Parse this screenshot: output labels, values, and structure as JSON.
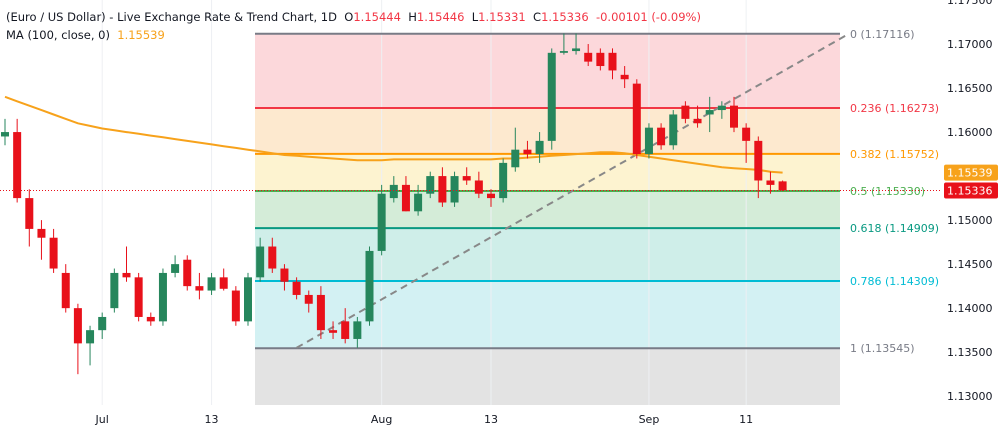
{
  "legend": {
    "title": "(Euro / US Dollar) - Live Exchange Rate & Trend Chart, 1D",
    "open_label": "O",
    "open": "1.15444",
    "high_label": "H",
    "high": "1.15446",
    "low_label": "L",
    "low": "1.15331",
    "close_label": "C",
    "close": "1.15336",
    "change": "-0.00101 (-0.09%)",
    "ma_label": "MA (100, close, 0)",
    "ma_value": "1.15539"
  },
  "colors": {
    "up": "#26865c",
    "down": "#e8111a",
    "ma": "#f7a21b",
    "trend": "#888888",
    "price_tag": "#e8111a",
    "ma_tag": "#f7a21b"
  },
  "chart_data": {
    "type": "candlestick",
    "y_range": [
      1.129,
      1.175
    ],
    "y_ticks": [
      "1.17500",
      "1.17000",
      "1.16500",
      "1.16000",
      "1.15500",
      "1.15000",
      "1.14500",
      "1.14000",
      "1.13500",
      "1.13000"
    ],
    "x_ticks": [
      {
        "label": "Jul",
        "index": 8
      },
      {
        "label": "13",
        "index": 17
      },
      {
        "label": "Aug",
        "index": 31
      },
      {
        "label": "13",
        "index": 40
      },
      {
        "label": "Sep",
        "index": 53
      },
      {
        "label": "11",
        "index": 61
      }
    ],
    "last_price": "1.15336",
    "ma_price": "1.15539",
    "candles": [
      [
        1.1595,
        1.1615,
        1.1585,
        1.16
      ],
      [
        1.16,
        1.1615,
        1.152,
        1.1525
      ],
      [
        1.1525,
        1.1535,
        1.147,
        1.149
      ],
      [
        1.149,
        1.15,
        1.1455,
        1.148
      ],
      [
        1.148,
        1.149,
        1.144,
        1.1445
      ],
      [
        1.144,
        1.145,
        1.1395,
        1.14
      ],
      [
        1.14,
        1.1405,
        1.1325,
        1.136
      ],
      [
        1.136,
        1.138,
        1.1335,
        1.1375
      ],
      [
        1.1375,
        1.1395,
        1.1365,
        1.139
      ],
      [
        1.14,
        1.1445,
        1.1395,
        1.144
      ],
      [
        1.144,
        1.147,
        1.143,
        1.1435
      ],
      [
        1.1435,
        1.144,
        1.1385,
        1.139
      ],
      [
        1.139,
        1.1395,
        1.138,
        1.1385
      ],
      [
        1.1385,
        1.1445,
        1.138,
        1.144
      ],
      [
        1.144,
        1.146,
        1.1435,
        1.145
      ],
      [
        1.1455,
        1.146,
        1.142,
        1.1425
      ],
      [
        1.1425,
        1.144,
        1.141,
        1.142
      ],
      [
        1.142,
        1.144,
        1.1415,
        1.1435
      ],
      [
        1.1435,
        1.1445,
        1.142,
        1.1422
      ],
      [
        1.142,
        1.1425,
        1.138,
        1.1385
      ],
      [
        1.1385,
        1.144,
        1.138,
        1.1435
      ],
      [
        1.1435,
        1.148,
        1.143,
        1.147
      ],
      [
        1.147,
        1.148,
        1.144,
        1.1445
      ],
      [
        1.1445,
        1.145,
        1.142,
        1.143
      ],
      [
        1.143,
        1.1435,
        1.141,
        1.1415
      ],
      [
        1.1415,
        1.142,
        1.1395,
        1.1405
      ],
      [
        1.1415,
        1.1425,
        1.1365,
        1.1375
      ],
      [
        1.1375,
        1.1385,
        1.1365,
        1.1372
      ],
      [
        1.1385,
        1.14,
        1.136,
        1.1365
      ],
      [
        1.1365,
        1.139,
        1.1355,
        1.1385
      ],
      [
        1.1385,
        1.147,
        1.138,
        1.1465
      ],
      [
        1.1465,
        1.154,
        1.146,
        1.153
      ],
      [
        1.1525,
        1.155,
        1.152,
        1.154
      ],
      [
        1.154,
        1.155,
        1.151,
        1.151
      ],
      [
        1.151,
        1.154,
        1.1505,
        1.153
      ],
      [
        1.153,
        1.1555,
        1.1525,
        1.155
      ],
      [
        1.155,
        1.156,
        1.1515,
        1.152
      ],
      [
        1.152,
        1.1555,
        1.1515,
        1.155
      ],
      [
        1.155,
        1.156,
        1.154,
        1.1545
      ],
      [
        1.1545,
        1.1555,
        1.1525,
        1.153
      ],
      [
        1.153,
        1.1535,
        1.1515,
        1.1525
      ],
      [
        1.1525,
        1.157,
        1.152,
        1.1565
      ],
      [
        1.156,
        1.1605,
        1.1555,
        1.158
      ],
      [
        1.158,
        1.159,
        1.157,
        1.1575
      ],
      [
        1.1575,
        1.16,
        1.1565,
        1.159
      ],
      [
        1.159,
        1.1695,
        1.158,
        1.169
      ],
      [
        1.169,
        1.1712,
        1.1688,
        1.1692
      ],
      [
        1.1692,
        1.1712,
        1.1688,
        1.1695
      ],
      [
        1.169,
        1.17,
        1.1675,
        1.168
      ],
      [
        1.169,
        1.1695,
        1.167,
        1.1675
      ],
      [
        1.169,
        1.1695,
        1.166,
        1.167
      ],
      [
        1.1665,
        1.1675,
        1.165,
        1.166
      ],
      [
        1.1655,
        1.166,
        1.157,
        1.1575
      ],
      [
        1.1575,
        1.161,
        1.157,
        1.1605
      ],
      [
        1.1605,
        1.161,
        1.158,
        1.1585
      ],
      [
        1.1585,
        1.1625,
        1.158,
        1.162
      ],
      [
        1.163,
        1.1635,
        1.161,
        1.1615
      ],
      [
        1.1615,
        1.163,
        1.1605,
        1.161
      ],
      [
        1.162,
        1.164,
        1.16,
        1.1625
      ],
      [
        1.1625,
        1.1635,
        1.1615,
        1.163
      ],
      [
        1.163,
        1.164,
        1.16,
        1.1605
      ],
      [
        1.1605,
        1.161,
        1.1565,
        1.159
      ],
      [
        1.159,
        1.1595,
        1.1525,
        1.1545
      ],
      [
        1.1545,
        1.1555,
        1.153,
        1.154
      ],
      [
        1.1544,
        1.1545,
        1.1533,
        1.1534
      ]
    ],
    "ma_series": [
      1.164,
      1.1635,
      1.163,
      1.1625,
      1.162,
      1.1615,
      1.161,
      1.1607,
      1.1604,
      1.1602,
      1.16,
      1.1598,
      1.1596,
      1.1594,
      1.1592,
      1.159,
      1.1588,
      1.1586,
      1.1584,
      1.1582,
      1.158,
      1.1578,
      1.1576,
      1.1574,
      1.1573,
      1.1572,
      1.1571,
      1.157,
      1.1569,
      1.1568,
      1.1568,
      1.1568,
      1.1569,
      1.1569,
      1.1569,
      1.1569,
      1.1569,
      1.1569,
      1.1569,
      1.1569,
      1.1569,
      1.157,
      1.157,
      1.1571,
      1.1572,
      1.1573,
      1.1574,
      1.1575,
      1.1576,
      1.1577,
      1.1577,
      1.1576,
      1.1574,
      1.1572,
      1.157,
      1.1568,
      1.1566,
      1.1564,
      1.1562,
      1.156,
      1.1559,
      1.1558,
      1.1557,
      1.1555,
      1.1554
    ],
    "fib_levels": [
      {
        "label": "0 (1.17116)",
        "price": 1.17116,
        "color": "#787b86",
        "fill": ""
      },
      {
        "label": "0.236 (1.16273)",
        "price": 1.16273,
        "color": "#f23645",
        "fill": "#fcd8db"
      },
      {
        "label": "0.382 (1.15752)",
        "price": 1.15752,
        "color": "#ff9800",
        "fill": "#fde9cf"
      },
      {
        "label": "0.5 (1.15330)",
        "price": 1.1533,
        "color": "#4caf50",
        "fill": "#fdf3d0"
      },
      {
        "label": "0.618 (1.14909)",
        "price": 1.14909,
        "color": "#089981",
        "fill": "#d4ecd8"
      },
      {
        "label": "0.786 (1.14309)",
        "price": 1.14309,
        "color": "#00bcd4",
        "fill": "#cfeee9"
      },
      {
        "label": "1 (1.13545)",
        "price": 1.13545,
        "color": "#787b86",
        "fill": "#d3f1f3"
      },
      {
        "label": "",
        "price": 1.1282,
        "color": "",
        "fill": "#e3e3e3"
      }
    ],
    "fib_below_fill": "#cfdcfb",
    "trendline": {
      "start": {
        "index": 24,
        "price": 1.1355
      },
      "end": {
        "index": 69.5,
        "price": 1.1712
      }
    }
  }
}
